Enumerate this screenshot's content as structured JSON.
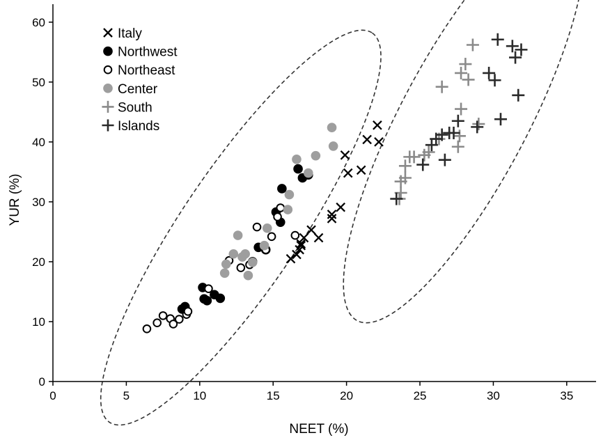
{
  "chart_data": {
    "type": "scatter",
    "title": "",
    "xlabel": "NEET  (%)",
    "ylabel": "YUR  (%)",
    "xlim": [
      0,
      37
    ],
    "ylim": [
      0,
      63
    ],
    "xticks": [
      0,
      5,
      10,
      15,
      20,
      25,
      30,
      35
    ],
    "yticks": [
      0,
      10,
      20,
      30,
      40,
      50,
      60
    ],
    "grid": false,
    "legend_position": "top-left",
    "series": [
      {
        "name": "Italy",
        "marker": "x",
        "color": "#000000",
        "points": [
          [
            16.2,
            20.5
          ],
          [
            16.6,
            21.2
          ],
          [
            16.9,
            23.0
          ],
          [
            17.1,
            24.0
          ],
          [
            17.6,
            25.3
          ],
          [
            18.1,
            24.0
          ],
          [
            16.8,
            22.0
          ],
          [
            16.9,
            22.7
          ],
          [
            19.0,
            27.2
          ],
          [
            19.0,
            27.9
          ],
          [
            19.6,
            29.1
          ],
          [
            19.9,
            37.8
          ],
          [
            20.1,
            34.8
          ],
          [
            21.0,
            35.3
          ],
          [
            21.4,
            40.4
          ],
          [
            22.1,
            42.8
          ],
          [
            22.2,
            40.0
          ]
        ]
      },
      {
        "name": "Northwest",
        "marker": "filled-circle",
        "color": "#000000",
        "points": [
          [
            8.8,
            12.1
          ],
          [
            9.0,
            12.5
          ],
          [
            10.2,
            15.7
          ],
          [
            10.3,
            13.8
          ],
          [
            10.5,
            13.5
          ],
          [
            11.0,
            14.5
          ],
          [
            11.4,
            13.9
          ],
          [
            13.6,
            20.0
          ],
          [
            14.0,
            22.4
          ],
          [
            14.5,
            22.0
          ],
          [
            15.2,
            28.3
          ],
          [
            15.5,
            26.6
          ],
          [
            15.6,
            32.2
          ],
          [
            16.7,
            35.5
          ],
          [
            17.0,
            34.0
          ],
          [
            17.4,
            34.5
          ]
        ]
      },
      {
        "name": "Northeast",
        "marker": "open-circle",
        "color": "#000000",
        "points": [
          [
            6.4,
            8.8
          ],
          [
            7.1,
            9.8
          ],
          [
            7.5,
            11.0
          ],
          [
            8.0,
            10.5
          ],
          [
            8.2,
            9.6
          ],
          [
            8.6,
            10.4
          ],
          [
            9.1,
            11.2
          ],
          [
            9.2,
            11.7
          ],
          [
            10.6,
            15.5
          ],
          [
            12.0,
            20.2
          ],
          [
            12.8,
            19.0
          ],
          [
            13.4,
            19.5
          ],
          [
            13.9,
            25.8
          ],
          [
            14.5,
            22.0
          ],
          [
            14.9,
            24.2
          ],
          [
            15.3,
            27.5
          ],
          [
            15.5,
            29.0
          ],
          [
            16.5,
            24.4
          ]
        ]
      },
      {
        "name": "Center",
        "marker": "filled-circle",
        "color": "#9e9e9e",
        "points": [
          [
            11.7,
            18.1
          ],
          [
            11.8,
            19.6
          ],
          [
            12.3,
            21.3
          ],
          [
            12.6,
            24.4
          ],
          [
            12.9,
            20.8
          ],
          [
            13.1,
            21.3
          ],
          [
            13.3,
            17.7
          ],
          [
            13.6,
            19.9
          ],
          [
            14.4,
            22.7
          ],
          [
            14.6,
            25.6
          ],
          [
            16.0,
            28.7
          ],
          [
            16.1,
            31.2
          ],
          [
            16.6,
            37.1
          ],
          [
            17.4,
            34.8
          ],
          [
            17.9,
            37.7
          ],
          [
            19.0,
            42.4
          ],
          [
            19.1,
            39.3
          ]
        ]
      },
      {
        "name": "South",
        "marker": "plus",
        "color": "#8a8a8a",
        "points": [
          [
            23.6,
            30.5
          ],
          [
            23.7,
            31.5
          ],
          [
            23.7,
            33.4
          ],
          [
            24.0,
            34.0
          ],
          [
            24.0,
            36.0
          ],
          [
            24.3,
            37.5
          ],
          [
            24.6,
            37.5
          ],
          [
            25.3,
            37.8
          ],
          [
            25.6,
            38.3
          ],
          [
            26.3,
            40.5
          ],
          [
            26.5,
            49.2
          ],
          [
            27.6,
            39.2
          ],
          [
            27.7,
            41.0
          ],
          [
            27.8,
            45.5
          ],
          [
            27.8,
            51.5
          ],
          [
            28.1,
            53.0
          ],
          [
            28.3,
            50.4
          ],
          [
            28.6,
            56.2
          ],
          [
            29.0,
            43.0
          ]
        ]
      },
      {
        "name": "Islands",
        "marker": "plus",
        "color": "#2a2a2a",
        "points": [
          [
            23.4,
            30.5
          ],
          [
            25.2,
            36.2
          ],
          [
            25.8,
            39.5
          ],
          [
            26.1,
            40.5
          ],
          [
            26.5,
            41.2
          ],
          [
            26.7,
            37.0
          ],
          [
            27.0,
            41.5
          ],
          [
            27.3,
            41.5
          ],
          [
            27.6,
            43.5
          ],
          [
            28.9,
            42.5
          ],
          [
            29.7,
            51.5
          ],
          [
            30.1,
            50.3
          ],
          [
            30.3,
            57.1
          ],
          [
            30.5,
            43.8
          ],
          [
            31.3,
            56.0
          ],
          [
            31.5,
            54.1
          ],
          [
            31.7,
            47.8
          ],
          [
            31.9,
            55.4
          ]
        ]
      }
    ],
    "annotations": [
      {
        "type": "dashed-ellipse",
        "cx": 12.8,
        "cy": 25.7,
        "rx": 16.0,
        "ry": 4.0,
        "angle_deg": 56
      },
      {
        "type": "dashed-ellipse",
        "cx": 28.0,
        "cy": 43.7,
        "rx": 15.5,
        "ry": 4.3,
        "angle_deg": 62
      }
    ]
  }
}
